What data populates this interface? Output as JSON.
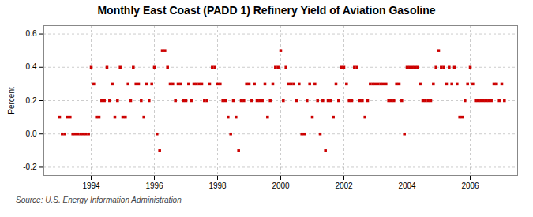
{
  "chart_data": {
    "type": "scatter",
    "title": "Monthly East Coast (PADD 1) Refinery Yield of Aviation Gasoline",
    "ylabel": "Percent",
    "source": "Source: U.S. Energy Information Administration",
    "color": "#cc0000",
    "marker": "square",
    "grid": true,
    "xlim": [
      1992.5,
      2007.5
    ],
    "ylim": [
      -0.25,
      0.65
    ],
    "xticks": [
      1994,
      1996,
      1998,
      2000,
      2002,
      2004,
      2006
    ],
    "yticks": [
      -0.2,
      {
        "value": 0,
        "label": "0.0"
      },
      0.2,
      0.4,
      0.6
    ],
    "x": [
      1993.0,
      1993.083,
      1993.167,
      1993.25,
      1993.333,
      1993.417,
      1993.5,
      1993.583,
      1993.667,
      1993.75,
      1993.833,
      1993.917,
      1994.0,
      1994.083,
      1994.167,
      1994.25,
      1994.333,
      1994.417,
      1994.5,
      1994.583,
      1994.667,
      1994.75,
      1994.833,
      1994.917,
      1995.0,
      1995.083,
      1995.167,
      1995.25,
      1995.333,
      1995.417,
      1995.5,
      1995.583,
      1995.667,
      1995.75,
      1995.833,
      1995.917,
      1996.0,
      1996.083,
      1996.167,
      1996.25,
      1996.333,
      1996.417,
      1996.5,
      1996.583,
      1996.667,
      1996.75,
      1996.833,
      1996.917,
      1997.0,
      1997.083,
      1997.167,
      1997.25,
      1997.333,
      1997.417,
      1997.5,
      1997.583,
      1997.667,
      1997.75,
      1997.833,
      1997.917,
      1998.0,
      1998.083,
      1998.167,
      1998.25,
      1998.333,
      1998.417,
      1998.5,
      1998.583,
      1998.667,
      1998.75,
      1998.833,
      1998.917,
      1999.0,
      1999.083,
      1999.167,
      1999.25,
      1999.333,
      1999.417,
      1999.5,
      1999.583,
      1999.667,
      1999.75,
      1999.833,
      1999.917,
      2000.0,
      2000.083,
      2000.167,
      2000.25,
      2000.333,
      2000.417,
      2000.5,
      2000.583,
      2000.667,
      2000.75,
      2000.833,
      2000.917,
      2001.0,
      2001.083,
      2001.167,
      2001.25,
      2001.333,
      2001.417,
      2001.5,
      2001.583,
      2001.667,
      2001.75,
      2001.833,
      2001.917,
      2002.0,
      2002.083,
      2002.167,
      2002.25,
      2002.333,
      2002.417,
      2002.5,
      2002.583,
      2002.667,
      2002.75,
      2002.833,
      2002.917,
      2003.0,
      2003.083,
      2003.167,
      2003.25,
      2003.333,
      2003.417,
      2003.5,
      2003.583,
      2003.667,
      2003.75,
      2003.833,
      2003.917,
      2004.0,
      2004.083,
      2004.167,
      2004.25,
      2004.333,
      2004.417,
      2004.5,
      2004.583,
      2004.667,
      2004.75,
      2004.833,
      2004.917,
      2005.0,
      2005.083,
      2005.167,
      2005.25,
      2005.333,
      2005.417,
      2005.5,
      2005.583,
      2005.667,
      2005.75,
      2005.833,
      2005.917,
      2006.0,
      2006.083,
      2006.167,
      2006.25,
      2006.333,
      2006.417,
      2006.5,
      2006.583,
      2006.667,
      2006.75,
      2006.833,
      2006.917,
      2007.0,
      2007.083
    ],
    "values": [
      0.1,
      0.0,
      0.0,
      0.1,
      0.1,
      0.0,
      0.0,
      0.0,
      0.0,
      0.0,
      0.0,
      0.0,
      0.4,
      0.3,
      0.1,
      0.1,
      0.2,
      0.2,
      0.4,
      0.2,
      0.3,
      0.1,
      0.2,
      0.4,
      0.1,
      0.1,
      0.3,
      0.2,
      0.4,
      0.3,
      0.3,
      0.2,
      0.1,
      0.3,
      0.2,
      0.3,
      0.4,
      0.0,
      -0.1,
      0.5,
      0.5,
      0.4,
      0.3,
      0.3,
      0.2,
      0.3,
      0.3,
      0.2,
      0.2,
      0.3,
      0.2,
      0.3,
      0.3,
      0.3,
      0.3,
      0.2,
      0.2,
      0.3,
      0.4,
      0.4,
      0.3,
      0.3,
      0.2,
      0.2,
      0.1,
      0.0,
      0.2,
      0.1,
      -0.1,
      0.2,
      0.2,
      0.3,
      0.3,
      0.2,
      0.3,
      0.2,
      0.2,
      0.2,
      0.3,
      0.1,
      0.2,
      0.3,
      0.4,
      0.4,
      0.5,
      0.2,
      0.4,
      0.3,
      0.3,
      0.3,
      0.2,
      0.3,
      0.0,
      0.0,
      0.2,
      0.3,
      0.1,
      0.3,
      0.2,
      0.0,
      0.2,
      -0.1,
      0.2,
      0.2,
      0.1,
      0.3,
      0.2,
      0.4,
      0.4,
      0.3,
      0.2,
      0.2,
      0.4,
      0.4,
      0.2,
      0.2,
      0.1,
      0.2,
      0.3,
      0.3,
      0.3,
      0.3,
      0.3,
      0.3,
      0.3,
      0.2,
      0.2,
      0.2,
      0.3,
      0.3,
      0.2,
      0.0,
      0.4,
      0.4,
      0.4,
      0.4,
      0.4,
      0.3,
      0.2,
      0.2,
      0.2,
      0.2,
      0.3,
      0.4,
      0.5,
      0.4,
      0.4,
      0.3,
      0.4,
      0.3,
      0.4,
      0.3,
      0.1,
      0.1,
      0.2,
      0.3,
      0.4,
      0.3,
      0.2,
      0.2,
      0.2,
      0.2,
      0.2,
      0.2,
      0.2,
      0.3,
      0.3,
      0.2,
      0.3,
      0.2
    ]
  }
}
